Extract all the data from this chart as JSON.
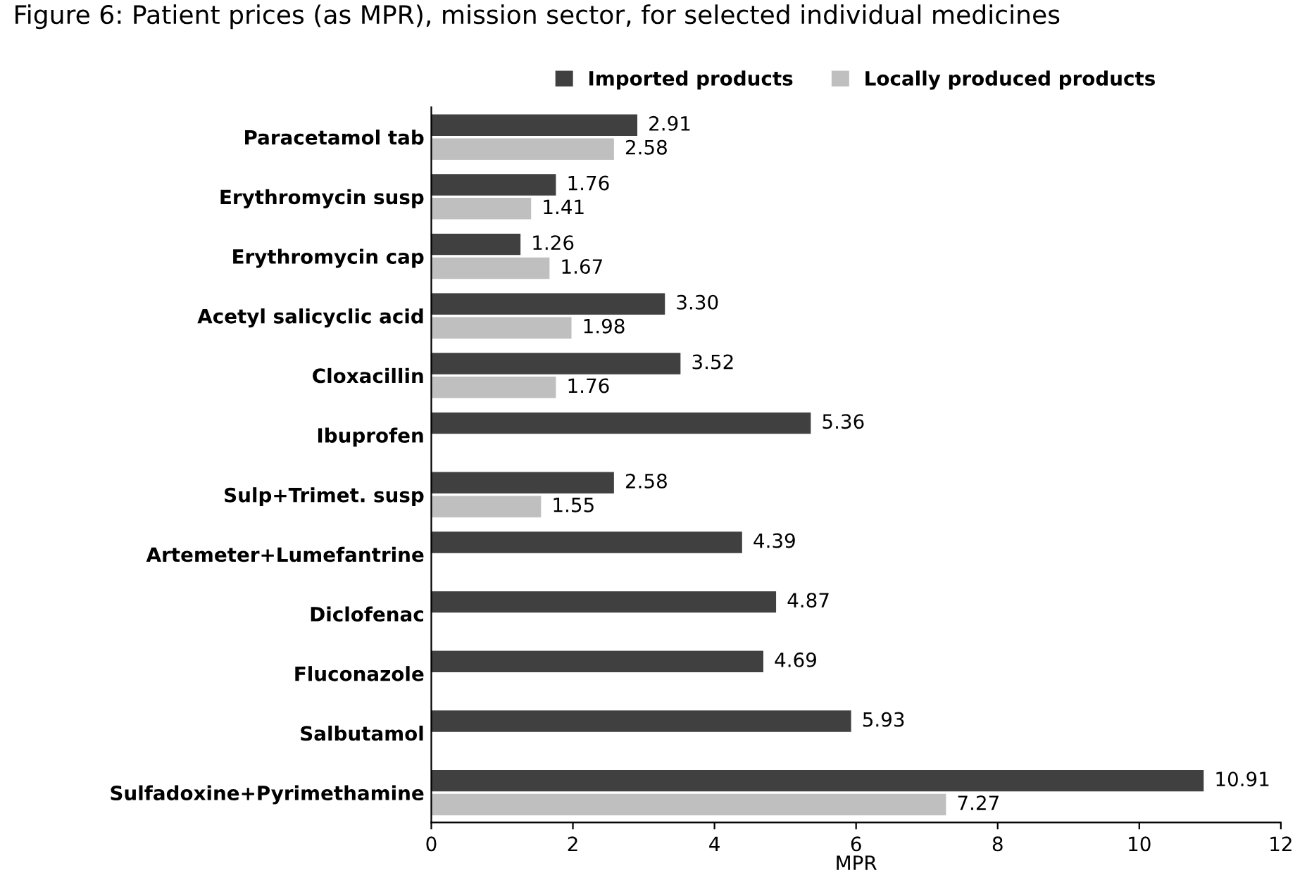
{
  "chart_data": {
    "type": "bar",
    "orientation": "horizontal",
    "title": "Figure 6: Patient prices (as MPR), mission sector, for selected individual medicines",
    "xlabel": "MPR",
    "categories": [
      "Paracetamol tab",
      "Erythromycin susp",
      "Erythromycin cap",
      "Acetyl salicyclic acid",
      "Cloxacillin",
      "Ibuprofen",
      "Sulp+Trimet. susp",
      "Artemeter+Lumefantrine",
      "Diclofenac",
      "Fluconazole",
      "Salbutamol",
      "Sulfadoxine+Pyrimethamine"
    ],
    "series": [
      {
        "name": "Imported products",
        "color": "#404040",
        "values": [
          2.91,
          1.76,
          1.26,
          3.3,
          3.52,
          5.36,
          2.58,
          4.39,
          4.87,
          4.69,
          5.93,
          10.91
        ]
      },
      {
        "name": "Locally produced products",
        "color": "#bfbfbf",
        "values": [
          2.58,
          1.41,
          1.67,
          1.98,
          1.76,
          null,
          1.55,
          null,
          null,
          null,
          null,
          7.27
        ]
      }
    ],
    "value_labels": [
      [
        "2.91",
        "1.76",
        "1.26",
        "3.30",
        "3.52",
        "5.36",
        "2.58",
        "4.39",
        "4.87",
        "4.69",
        "5.93",
        "10.91"
      ],
      [
        "2.58",
        "1.41",
        "1.67",
        "1.98",
        "1.76",
        null,
        "1.55",
        null,
        null,
        null,
        null,
        "7.27"
      ]
    ],
    "xlim": [
      0,
      12
    ],
    "xticks": [
      0,
      2,
      4,
      6,
      8,
      10,
      12
    ],
    "legend": "top",
    "grid": false
  }
}
